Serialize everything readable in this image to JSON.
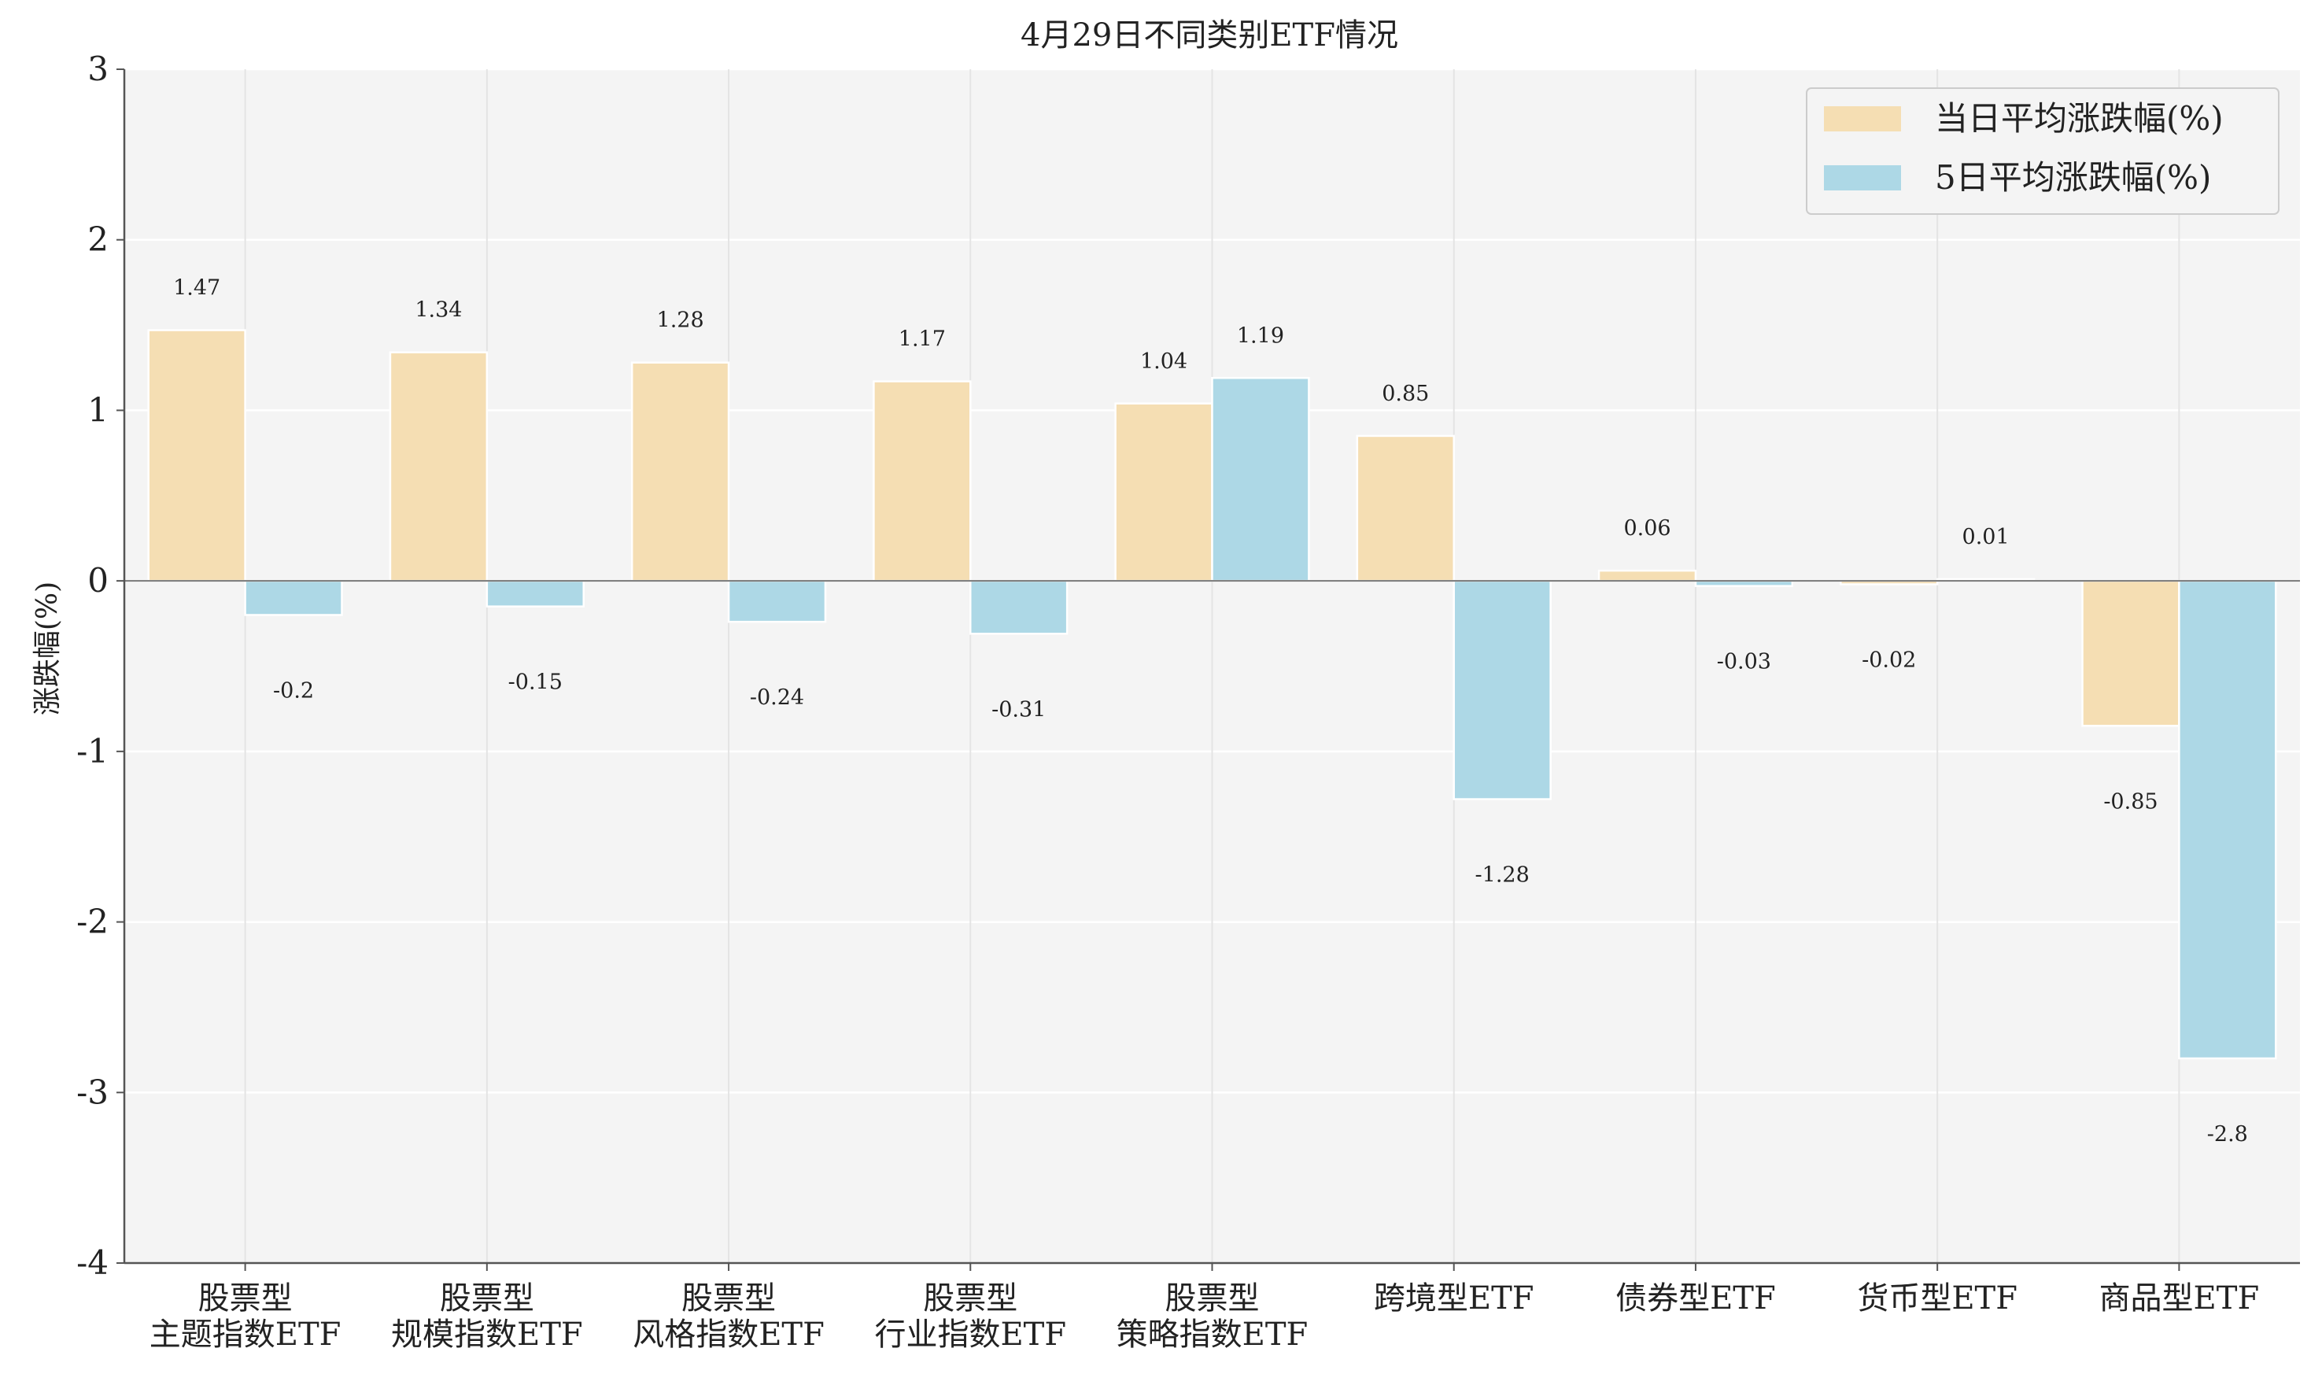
{
  "chart_data": {
    "type": "bar",
    "title": "4月29日不同类别ETF情况",
    "xlabel": "",
    "ylabel": "涨跌幅(%)",
    "ylim": [
      -4,
      3
    ],
    "yticks": [
      "3",
      "2",
      "1",
      "0",
      "-1",
      "-2",
      "-3",
      "-4"
    ],
    "grid": true,
    "legend_position": "top-right",
    "categories": [
      [
        "股票型",
        "主题指数ETF"
      ],
      [
        "股票型",
        "规模指数ETF"
      ],
      [
        "股票型",
        "风格指数ETF"
      ],
      [
        "股票型",
        "行业指数ETF"
      ],
      [
        "股票型",
        "策略指数ETF"
      ],
      [
        "跨境型ETF"
      ],
      [
        "债券型ETF"
      ],
      [
        "货币型ETF"
      ],
      [
        "商品型ETF"
      ]
    ],
    "series": [
      {
        "name": "当日平均涨跌幅(%)",
        "color": "#f5deb3",
        "values": [
          1.47,
          1.34,
          1.28,
          1.17,
          1.04,
          0.85,
          0.06,
          -0.02,
          -0.85
        ],
        "labels": [
          "1.47",
          "1.34",
          "1.28",
          "1.17",
          "1.04",
          "0.85",
          "0.06",
          "-0.02",
          "-0.85"
        ]
      },
      {
        "name": "5日平均涨跌幅(%)",
        "color": "#add8e6",
        "values": [
          -0.2,
          -0.15,
          -0.24,
          -0.31,
          1.19,
          -1.28,
          -0.03,
          0.01,
          -2.8
        ],
        "labels": [
          "-0.2",
          "-0.15",
          "-0.24",
          "-0.31",
          "1.19",
          "-1.28",
          "-0.03",
          "0.01",
          "-2.8"
        ]
      }
    ]
  }
}
